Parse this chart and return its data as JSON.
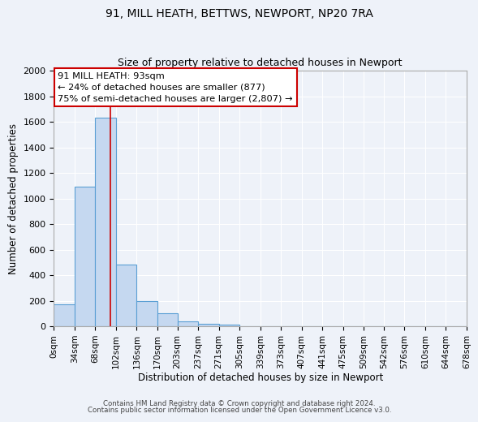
{
  "title1": "91, MILL HEATH, BETTWS, NEWPORT, NP20 7RA",
  "title2": "Size of property relative to detached houses in Newport",
  "xlabel": "Distribution of detached houses by size in Newport",
  "ylabel": "Number of detached properties",
  "bin_edges": [
    0,
    34,
    68,
    102,
    136,
    170,
    203,
    237,
    271,
    305,
    339,
    373,
    407,
    441,
    475,
    509,
    542,
    576,
    610,
    644,
    678
  ],
  "bar_heights": [
    170,
    1090,
    1630,
    480,
    200,
    100,
    40,
    20,
    15,
    0,
    0,
    0,
    0,
    0,
    0,
    0,
    0,
    0,
    0,
    0
  ],
  "bar_color": "#c5d8f0",
  "bar_edgecolor": "#5a9fd4",
  "bar_linewidth": 0.8,
  "vline_x": 93,
  "vline_color": "#cc0000",
  "ylim": [
    0,
    2000
  ],
  "xlim": [
    0,
    678
  ],
  "tick_labels": [
    "0sqm",
    "34sqm",
    "68sqm",
    "102sqm",
    "136sqm",
    "170sqm",
    "203sqm",
    "237sqm",
    "271sqm",
    "305sqm",
    "339sqm",
    "373sqm",
    "407sqm",
    "441sqm",
    "475sqm",
    "509sqm",
    "542sqm",
    "576sqm",
    "610sqm",
    "644sqm",
    "678sqm"
  ],
  "ann_line1": "91 MILL HEATH: 93sqm",
  "ann_line2": "← 24% of detached houses are smaller (877)",
  "ann_line3": "75% of semi-detached houses are larger (2,807) →",
  "footer1": "Contains HM Land Registry data © Crown copyright and database right 2024.",
  "footer2": "Contains public sector information licensed under the Open Government Licence v3.0.",
  "background_color": "#eef2f9",
  "grid_color": "#ffffff"
}
